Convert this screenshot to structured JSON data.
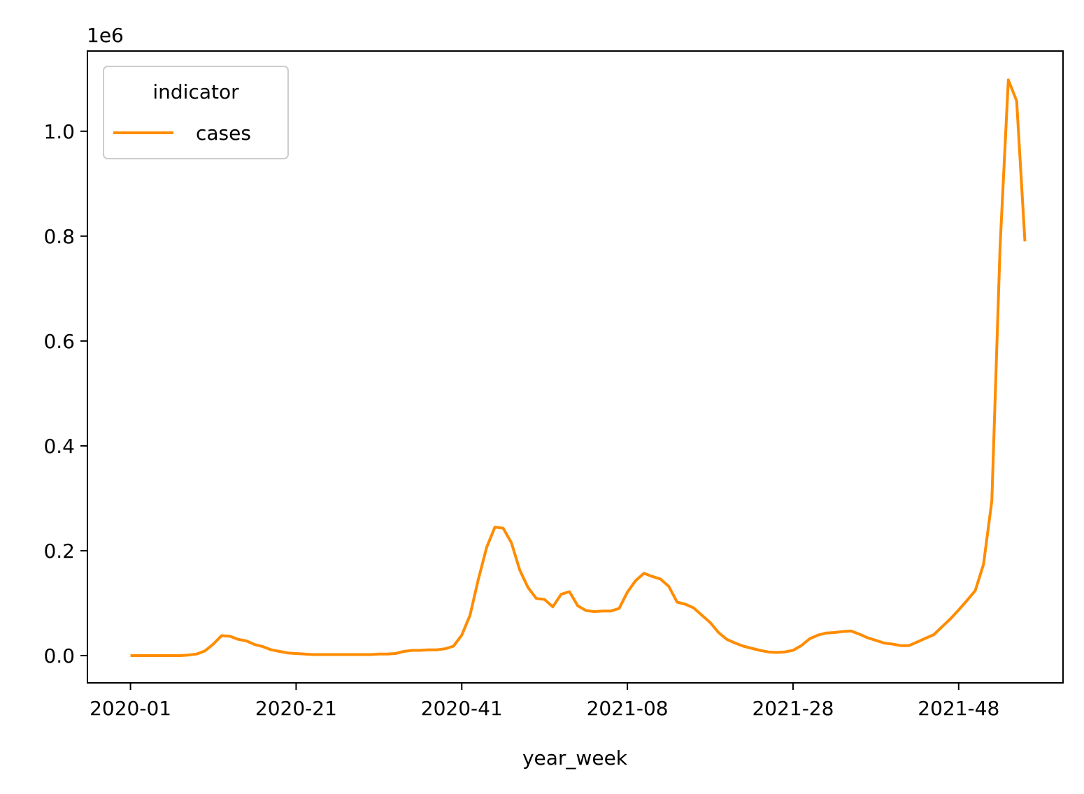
{
  "chart_data": {
    "type": "line",
    "xlabel": "year_week",
    "ylabel": "",
    "y_scale_label": "1e6",
    "x_tick_labels": [
      "2020-01",
      "2020-21",
      "2020-41",
      "2021-08",
      "2021-28",
      "2021-48"
    ],
    "x_tick_indices": [
      0,
      20,
      40,
      60,
      80,
      100
    ],
    "x_range": [
      -5.2,
      112.6
    ],
    "y_ticks": [
      0.0,
      0.2,
      0.4,
      0.6,
      0.8,
      1.0
    ],
    "y_tick_labels": [
      "0.0",
      "0.2",
      "0.4",
      "0.6",
      "0.8",
      "1.0"
    ],
    "ylim": [
      -0.052,
      1.153
    ],
    "legend": {
      "title": "indicator",
      "position": "top-left"
    },
    "grid": false,
    "series": [
      {
        "name": "cases",
        "color": "#ff8c00",
        "values": [
          0,
          0,
          0,
          0,
          0,
          0,
          0,
          0.001,
          0.003,
          0.009,
          0.022,
          0.038,
          0.037,
          0.031,
          0.028,
          0.021,
          0.017,
          0.011,
          0.008,
          0.005,
          0.004,
          0.003,
          0.002,
          0.002,
          0.002,
          0.002,
          0.002,
          0.002,
          0.002,
          0.002,
          0.003,
          0.003,
          0.004,
          0.008,
          0.01,
          0.01,
          0.011,
          0.011,
          0.013,
          0.018,
          0.039,
          0.077,
          0.145,
          0.206,
          0.245,
          0.243,
          0.215,
          0.163,
          0.13,
          0.109,
          0.107,
          0.093,
          0.117,
          0.122,
          0.095,
          0.086,
          0.084,
          0.085,
          0.085,
          0.09,
          0.121,
          0.143,
          0.157,
          0.151,
          0.146,
          0.132,
          0.102,
          0.098,
          0.091,
          0.077,
          0.063,
          0.044,
          0.031,
          0.024,
          0.018,
          0.014,
          0.01,
          0.007,
          0.006,
          0.007,
          0.01,
          0.019,
          0.032,
          0.039,
          0.043,
          0.044,
          0.046,
          0.047,
          0.041,
          0.034,
          0.029,
          0.024,
          0.022,
          0.019,
          0.019,
          0.026,
          0.033,
          0.04,
          0.055,
          0.07,
          0.087,
          0.105,
          0.124,
          0.174,
          0.295,
          0.78,
          1.098,
          1.058,
          0.79
        ]
      }
    ]
  }
}
